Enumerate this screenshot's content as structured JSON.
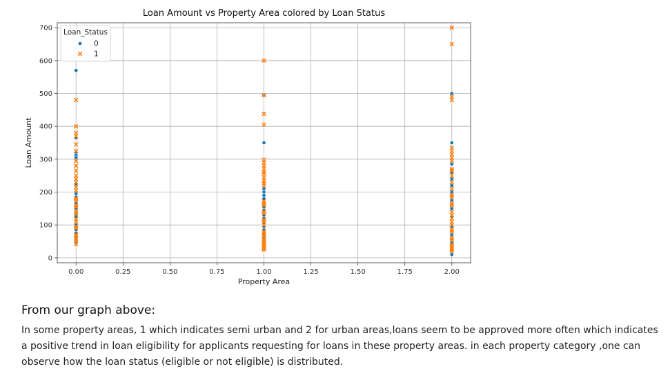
{
  "chart_data": {
    "type": "scatter",
    "title": "Loan Amount vs Property Area colored by Loan Status",
    "xlabel": "Property Area",
    "ylabel": "Loan Amount",
    "xlim": [
      -0.1,
      2.1
    ],
    "ylim": [
      -15,
      715
    ],
    "xticks": [
      0.0,
      0.25,
      0.5,
      0.75,
      1.0,
      1.25,
      1.5,
      1.75,
      2.0
    ],
    "xtick_labels": [
      "0.00",
      "0.25",
      "0.50",
      "0.75",
      "1.00",
      "1.25",
      "1.50",
      "1.75",
      "2.00"
    ],
    "yticks": [
      0,
      100,
      200,
      300,
      400,
      500,
      600,
      700
    ],
    "ytick_labels": [
      "0",
      "100",
      "200",
      "300",
      "400",
      "500",
      "600",
      "700"
    ],
    "grid": true,
    "legend": {
      "title": "Loan_Status",
      "placement": "top-left",
      "entries": [
        "0",
        "1"
      ]
    },
    "series": [
      {
        "name": "0",
        "marker": "circle",
        "color": "#1f77b4",
        "points": [
          [
            0,
            570
          ],
          [
            0,
            365
          ],
          [
            0,
            320
          ],
          [
            0,
            312
          ],
          [
            0,
            305
          ],
          [
            0,
            225
          ],
          [
            0,
            195
          ],
          [
            0,
            185
          ],
          [
            0,
            165
          ],
          [
            0,
            150
          ],
          [
            0,
            130
          ],
          [
            0,
            125
          ],
          [
            0,
            100
          ],
          [
            0,
            85
          ],
          [
            0,
            75
          ],
          [
            0,
            62
          ],
          [
            0,
            55
          ],
          [
            0,
            48
          ],
          [
            1,
            495
          ],
          [
            1,
            350
          ],
          [
            1,
            210
          ],
          [
            1,
            200
          ],
          [
            1,
            190
          ],
          [
            1,
            180
          ],
          [
            1,
            155
          ],
          [
            1,
            145
          ],
          [
            1,
            130
          ],
          [
            1,
            120
          ],
          [
            1,
            105
          ],
          [
            1,
            95
          ],
          [
            1,
            85
          ],
          [
            1,
            60
          ],
          [
            2,
            500
          ],
          [
            2,
            350
          ],
          [
            2,
            285
          ],
          [
            2,
            260
          ],
          [
            2,
            240
          ],
          [
            2,
            220
          ],
          [
            2,
            200
          ],
          [
            2,
            175
          ],
          [
            2,
            150
          ],
          [
            2,
            125
          ],
          [
            2,
            95
          ],
          [
            2,
            70
          ],
          [
            2,
            45
          ],
          [
            2,
            10
          ]
        ]
      },
      {
        "name": "1",
        "marker": "x",
        "color": "#ff7f0e",
        "points": [
          [
            0,
            480
          ],
          [
            0,
            400
          ],
          [
            0,
            380
          ],
          [
            0,
            370
          ],
          [
            0,
            345
          ],
          [
            0,
            325
          ],
          [
            0,
            295
          ],
          [
            0,
            280
          ],
          [
            0,
            265
          ],
          [
            0,
            250
          ],
          [
            0,
            240
          ],
          [
            0,
            230
          ],
          [
            0,
            215
          ],
          [
            0,
            205
          ],
          [
            0,
            180
          ],
          [
            0,
            175
          ],
          [
            0,
            160
          ],
          [
            0,
            155
          ],
          [
            0,
            140
          ],
          [
            0,
            135
          ],
          [
            0,
            118
          ],
          [
            0,
            110
          ],
          [
            0,
            95
          ],
          [
            0,
            90
          ],
          [
            0,
            70
          ],
          [
            0,
            66
          ],
          [
            0,
            58
          ],
          [
            0,
            50
          ],
          [
            0,
            42
          ],
          [
            1,
            600
          ],
          [
            1,
            495
          ],
          [
            1,
            438
          ],
          [
            1,
            405
          ],
          [
            1,
            298
          ],
          [
            1,
            290
          ],
          [
            1,
            280
          ],
          [
            1,
            270
          ],
          [
            1,
            262
          ],
          [
            1,
            255
          ],
          [
            1,
            245
          ],
          [
            1,
            235
          ],
          [
            1,
            228
          ],
          [
            1,
            220
          ],
          [
            1,
            172
          ],
          [
            1,
            165
          ],
          [
            1,
            160
          ],
          [
            1,
            140
          ],
          [
            1,
            135
          ],
          [
            1,
            115
          ],
          [
            1,
            110
          ],
          [
            1,
            100
          ],
          [
            1,
            80
          ],
          [
            1,
            75
          ],
          [
            1,
            70
          ],
          [
            1,
            65
          ],
          [
            1,
            55
          ],
          [
            1,
            50
          ],
          [
            1,
            45
          ],
          [
            1,
            40
          ],
          [
            1,
            35
          ],
          [
            1,
            30
          ],
          [
            1,
            25
          ],
          [
            2,
            700
          ],
          [
            2,
            650
          ],
          [
            2,
            490
          ],
          [
            2,
            480
          ],
          [
            2,
            335
          ],
          [
            2,
            325
          ],
          [
            2,
            315
          ],
          [
            2,
            305
          ],
          [
            2,
            295
          ],
          [
            2,
            270
          ],
          [
            2,
            265
          ],
          [
            2,
            250
          ],
          [
            2,
            230
          ],
          [
            2,
            210
          ],
          [
            2,
            190
          ],
          [
            2,
            185
          ],
          [
            2,
            165
          ],
          [
            2,
            160
          ],
          [
            2,
            140
          ],
          [
            2,
            130
          ],
          [
            2,
            120
          ],
          [
            2,
            110
          ],
          [
            2,
            100
          ],
          [
            2,
            85
          ],
          [
            2,
            80
          ],
          [
            2,
            60
          ],
          [
            2,
            55
          ],
          [
            2,
            40
          ],
          [
            2,
            35
          ],
          [
            2,
            30
          ],
          [
            2,
            25
          ],
          [
            2,
            20
          ]
        ]
      }
    ]
  },
  "notes": {
    "heading": "From our graph above:",
    "body": "In some property areas, 1 which indicates semi urban and 2 for urban areas,loans seem to be approved more often which indicates a positive trend in loan eligibility for applicants requesting for loans in these property areas. in each property category ,one can observe how the loan status (eligible or not eligible) is distributed."
  }
}
